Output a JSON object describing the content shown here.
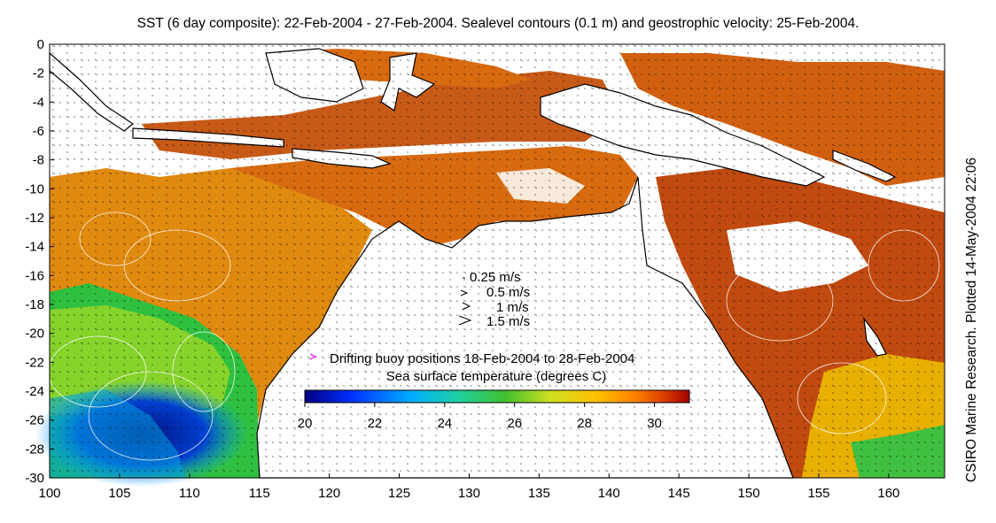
{
  "title": "SST (6 day composite): 22-Feb-2004 - 27-Feb-2004. Sealevel contours (0.1 m) and geostrophic velocity: 25-Feb-2004.",
  "credit": "CSIRO Marine Research. Plotted 14-May-2004 22:06",
  "map": {
    "lon_range": [
      100,
      164
    ],
    "lat_range": [
      -30,
      0
    ],
    "x_ticks": [
      "100",
      "105",
      "110",
      "115",
      "120",
      "125",
      "130",
      "135",
      "140",
      "145",
      "150",
      "155",
      "160"
    ],
    "y_ticks": [
      "0",
      "-2",
      "-4",
      "-6",
      "-8",
      "-10",
      "-12",
      "-14",
      "-16",
      "-18",
      "-20",
      "-22",
      "-24",
      "-26",
      "-28",
      "-30"
    ]
  },
  "velocity_legend": [
    {
      "label": "0.25 m/s"
    },
    {
      "label": "0.5 m/s"
    },
    {
      "label": "1 m/s"
    },
    {
      "label": "1.5 m/s"
    }
  ],
  "buoy_label": "Drifting buoy positions 18-Feb-2004 to 28-Feb-2004",
  "buoy_color": "#ff00ff",
  "colorbar": {
    "title": "Sea surface temperature (degrees C)",
    "range": [
      20,
      31
    ],
    "ticks": [
      "20",
      "22",
      "24",
      "26",
      "28",
      "30"
    ],
    "colors": [
      "#00007f",
      "#0030ff",
      "#00a0ff",
      "#20d0b0",
      "#30c040",
      "#c0e020",
      "#ffd000",
      "#ff9000",
      "#e05000",
      "#a00000"
    ]
  },
  "colors": {
    "land": "#ffffff",
    "coast": "#000000",
    "contour": "#ffffff",
    "arrows": "#000000"
  }
}
